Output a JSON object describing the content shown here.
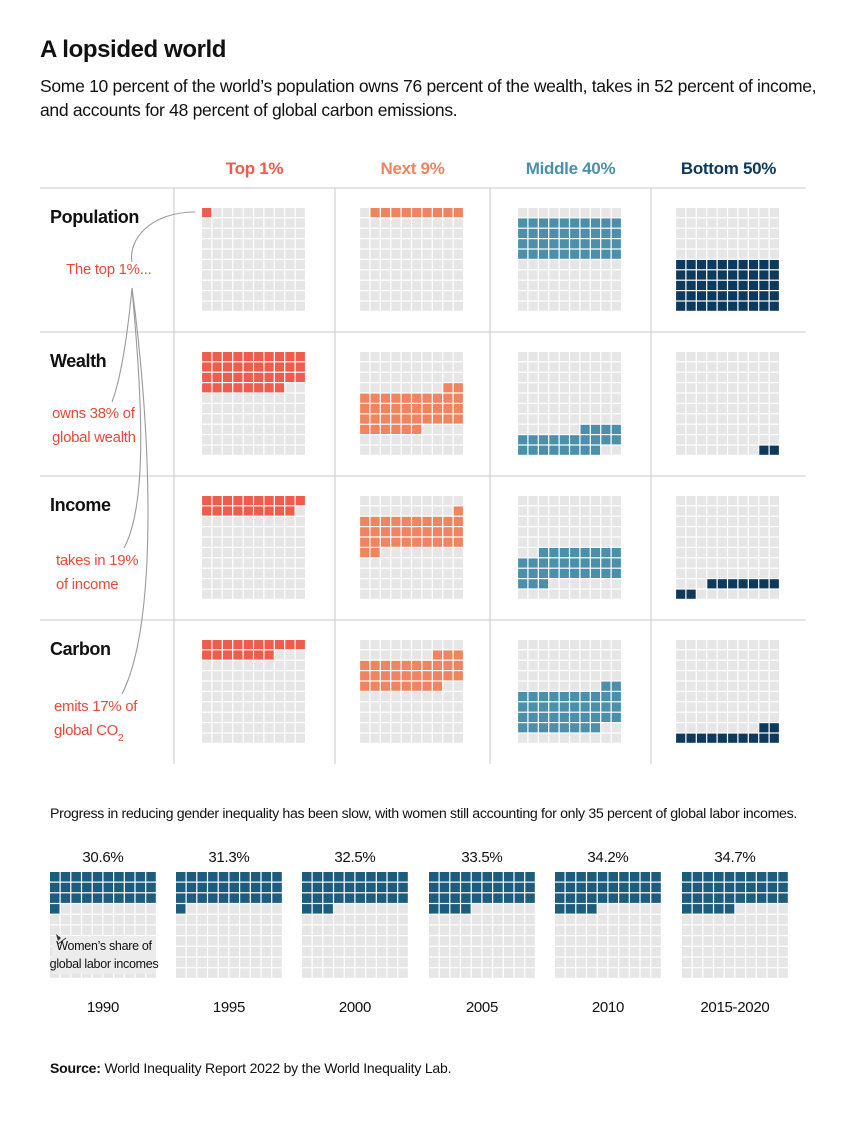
{
  "header": {
    "title": "A lopsided world",
    "subtitle": "Some 10 percent of the world’s population owns 76 percent of the wealth, takes in 52 percent of income, and accounts for 48 percent of global carbon emissions."
  },
  "chart_data": [
    {
      "type": "waffle",
      "grid": "10x10",
      "columns": [
        {
          "label": "Top 1%",
          "color": "#ef5b4c"
        },
        {
          "label": "Next 9%",
          "color": "#ef8560"
        },
        {
          "label": "Middle 40%",
          "color": "#4c8fab"
        },
        {
          "label": "Bottom 50%",
          "color": "#0d3a5c"
        }
      ],
      "rows": [
        {
          "label": "Population",
          "annotation": [
            "The top 1%..."
          ],
          "values": [
            1,
            9,
            40,
            50
          ]
        },
        {
          "label": "Wealth",
          "annotation": [
            "owns 38% of",
            "global wealth"
          ],
          "values": [
            38,
            38,
            22,
            2
          ]
        },
        {
          "label": "Income",
          "annotation": [
            "takes in 19%",
            "of income"
          ],
          "values": [
            19,
            33,
            31,
            9
          ]
        },
        {
          "label": "Carbon",
          "annotation": [
            "emits 17% of",
            "global CO",
            "2"
          ],
          "values": [
            17,
            31,
            40,
            12
          ]
        }
      ]
    },
    {
      "type": "waffle",
      "grid": "10x10",
      "title": "Progress in reducing gender inequality has been slow, with women still accounting for only 35 percent of global labor incomes.",
      "color": "#1d5c7c",
      "annotation": [
        "Women’s share of",
        "global labor incomes"
      ],
      "periods": [
        {
          "year": "1990",
          "label": "30.6%",
          "value": 30.6
        },
        {
          "year": "1995",
          "label": "31.3%",
          "value": 31.3
        },
        {
          "year": "2000",
          "label": "32.5%",
          "value": 32.5
        },
        {
          "year": "2005",
          "label": "33.5%",
          "value": 33.5
        },
        {
          "year": "2010",
          "label": "34.2%",
          "value": 34.2
        },
        {
          "year": "2015-2020",
          "label": "34.7%",
          "value": 34.7
        }
      ]
    }
  ],
  "footnote": {
    "source_label": "Source:",
    "source_text": "World Inequality Report 2022 by the World Inequality Lab."
  }
}
